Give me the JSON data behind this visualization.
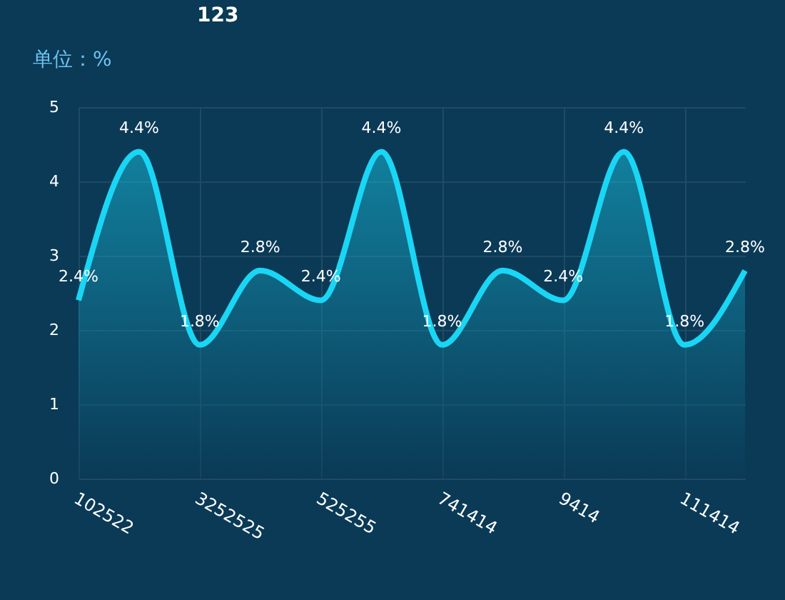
{
  "chart_data": {
    "type": "area",
    "title": "123",
    "annotations": [
      "单位：%"
    ],
    "categories": [
      "102522",
      null,
      "3252525",
      null,
      "525255",
      null,
      "741414",
      null,
      "9414",
      null,
      "111414",
      null
    ],
    "series": [
      {
        "color": "#1ad6f5",
        "values": [
          2.4,
          4.4,
          1.8,
          2.8,
          2.4,
          4.4,
          1.8,
          2.8,
          2.4,
          4.4,
          1.8,
          2.8
        ],
        "value_labels": [
          "2.4%",
          "4.4%",
          "1.8%",
          "2.8%",
          "2.4%",
          "4.4%",
          "1.8%",
          "2.8%",
          "2.4%",
          "4.4%",
          "1.8%",
          "2.8%"
        ]
      }
    ],
    "ylim": [
      0,
      5
    ],
    "yticks": [
      0,
      1,
      2,
      3,
      4,
      5
    ],
    "grid": true
  }
}
